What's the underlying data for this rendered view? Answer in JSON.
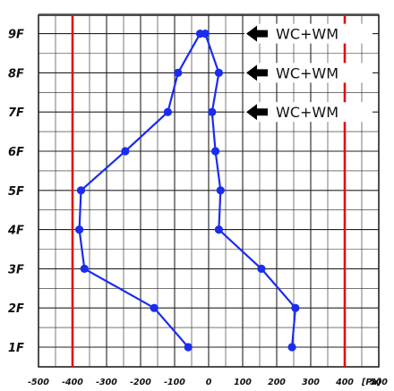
{
  "chart_data": {
    "type": "line",
    "orientation": "vertical-profile",
    "floors": [
      "1F",
      "2F",
      "3F",
      "4F",
      "5F",
      "6F",
      "7F",
      "8F",
      "9F"
    ],
    "x_ticks": [
      "-500",
      "-400",
      "-300",
      "-200",
      "-100",
      "0",
      "100",
      "200",
      "300",
      "400",
      "500"
    ],
    "x_unit": "[Pa]",
    "xlim": [
      -500,
      500
    ],
    "grid": true,
    "reference_lines": [
      {
        "value": -400,
        "color": "#dd1111"
      },
      {
        "value": 400,
        "color": "#dd1111"
      }
    ],
    "series": [
      {
        "color": "#1a2cf0",
        "points": [
          {
            "floor": "1F",
            "value": -60
          },
          {
            "floor": "2F",
            "value": -160
          },
          {
            "floor": "3F",
            "value": -365
          },
          {
            "floor": "4F",
            "value": -380
          },
          {
            "floor": "5F",
            "value": -375
          },
          {
            "floor": "6F",
            "value": -245
          },
          {
            "floor": "7F",
            "value": -120
          },
          {
            "floor": "8F",
            "value": -90
          },
          {
            "floor": "9F",
            "value": -25
          }
        ]
      },
      {
        "color": "#1a2cf0",
        "points": [
          {
            "floor": "1F",
            "value": 245
          },
          {
            "floor": "2F",
            "value": 255
          },
          {
            "floor": "3F",
            "value": 155
          },
          {
            "floor": "4F",
            "value": 30
          },
          {
            "floor": "5F",
            "value": 35
          },
          {
            "floor": "6F",
            "value": 20
          },
          {
            "floor": "7F",
            "value": 10
          },
          {
            "floor": "8F",
            "value": 30
          },
          {
            "floor": "9F",
            "value": -10
          }
        ]
      }
    ],
    "annotations": [
      {
        "floor": "9F",
        "text": "WC+WM",
        "arrow": "left"
      },
      {
        "floor": "8F",
        "text": "WC+WM",
        "arrow": "left"
      },
      {
        "floor": "7F",
        "text": "WC+WM",
        "arrow": "left"
      }
    ],
    "colors": {
      "grid": "#222222",
      "reference": "#dd1111",
      "series": "#1a2cf0"
    }
  }
}
